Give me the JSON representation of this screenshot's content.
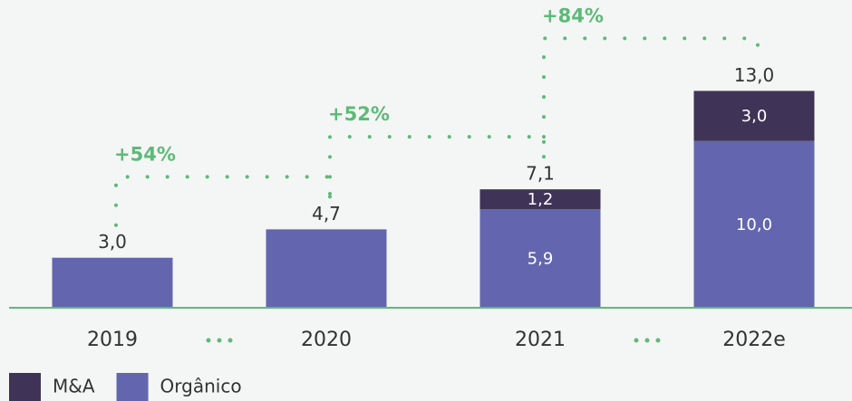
{
  "chart_data": {
    "type": "stacked_bar",
    "categories": [
      "2019",
      "2020",
      "2021",
      "2022e"
    ],
    "series": [
      {
        "name": "M&A",
        "color": "#3f3357",
        "values": [
          null,
          null,
          1.2,
          3.0
        ],
        "value_labels": [
          null,
          null,
          "1,2",
          "3,0"
        ]
      },
      {
        "name": "Orgânico",
        "color": "#6366ae",
        "values": [
          3.0,
          4.7,
          5.9,
          10.0
        ],
        "value_labels": [
          null,
          null,
          "5,9",
          "10,0"
        ]
      }
    ],
    "totals": [
      3.0,
      4.7,
      7.1,
      13.0
    ],
    "total_labels": [
      "3,0",
      "4,7",
      "7,1",
      "13,0"
    ],
    "annotations": [
      "+54%",
      "+52%",
      "+84%"
    ],
    "annotation_color": "#5dba78",
    "ylim": [
      0,
      14
    ]
  }
}
